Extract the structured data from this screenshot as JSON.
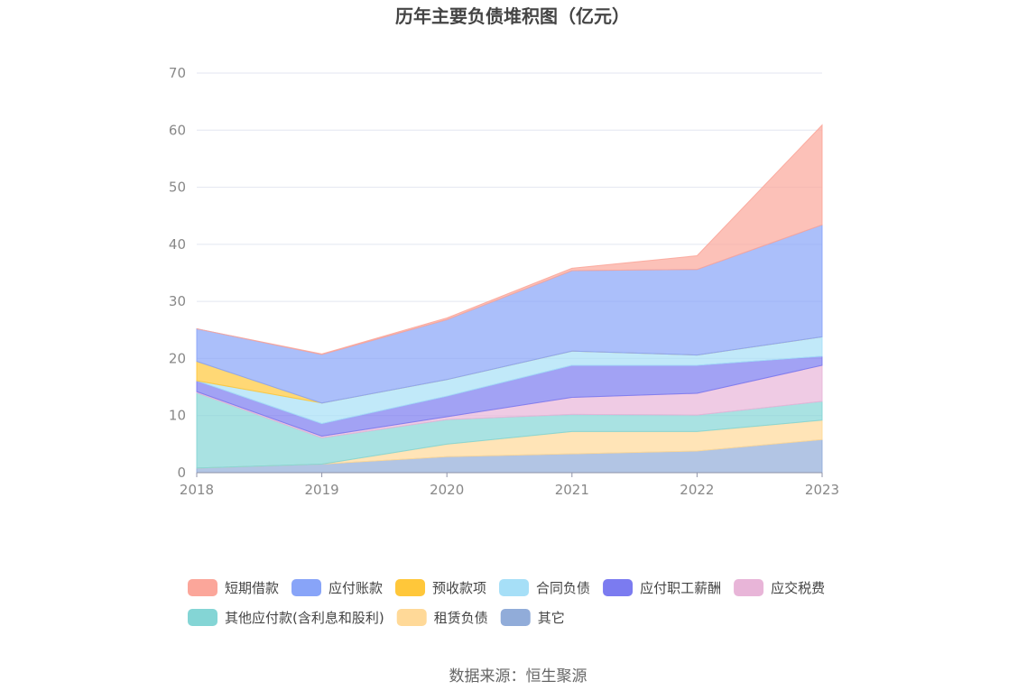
{
  "chart_data": {
    "type": "area",
    "stacked": true,
    "title": "历年主要负债堆积图（亿元）",
    "xlabel": "",
    "ylabel": "",
    "ylim": [
      0,
      70
    ],
    "yticks": [
      0,
      10,
      20,
      30,
      40,
      50,
      60,
      70
    ],
    "categories": [
      "2018",
      "2019",
      "2020",
      "2021",
      "2022",
      "2023"
    ],
    "grid": true,
    "legend_position": "bottom",
    "series": [
      {
        "name": "其它",
        "color": "#91acd9",
        "values": [
          0.8,
          1.5,
          2.8,
          3.3,
          3.8,
          5.8
        ]
      },
      {
        "name": "租赁负债",
        "color": "#ffd998",
        "values": [
          0,
          0,
          2.2,
          3.9,
          3.4,
          3.4
        ]
      },
      {
        "name": "其他应付款(含利息和股利)",
        "color": "#84d5d5",
        "values": [
          13.2,
          4.6,
          4.3,
          3.0,
          2.9,
          3.3
        ]
      },
      {
        "name": "应交税费",
        "color": "#e8b5d8",
        "values": [
          0.2,
          0.3,
          0.5,
          3.0,
          3.8,
          6.3
        ]
      },
      {
        "name": "应付职工薪酬",
        "color": "#7b7bf0",
        "values": [
          1.9,
          2.2,
          3.6,
          5.6,
          4.9,
          1.6
        ]
      },
      {
        "name": "合同负债",
        "color": "#a6dff7",
        "values": [
          0,
          3.6,
          2.9,
          2.5,
          1.8,
          3.4
        ]
      },
      {
        "name": "预收款项",
        "color": "#ffc73a",
        "values": [
          3.4,
          0,
          0,
          0,
          0,
          0
        ]
      },
      {
        "name": "应付账款",
        "color": "#88a4f8",
        "values": [
          5.7,
          8.5,
          10.5,
          14.1,
          15.0,
          19.6
        ]
      },
      {
        "name": "短期借款",
        "color": "#fba69a",
        "values": [
          0,
          0.1,
          0.3,
          0.4,
          2.4,
          17.5
        ]
      }
    ],
    "legend_order": [
      "短期借款",
      "应付账款",
      "预收款项",
      "合同负债",
      "应付职工薪酬",
      "应交税费",
      "其他应付款(含利息和股利)",
      "租赁负债",
      "其它"
    ]
  },
  "source": "数据来源：恒生聚源"
}
